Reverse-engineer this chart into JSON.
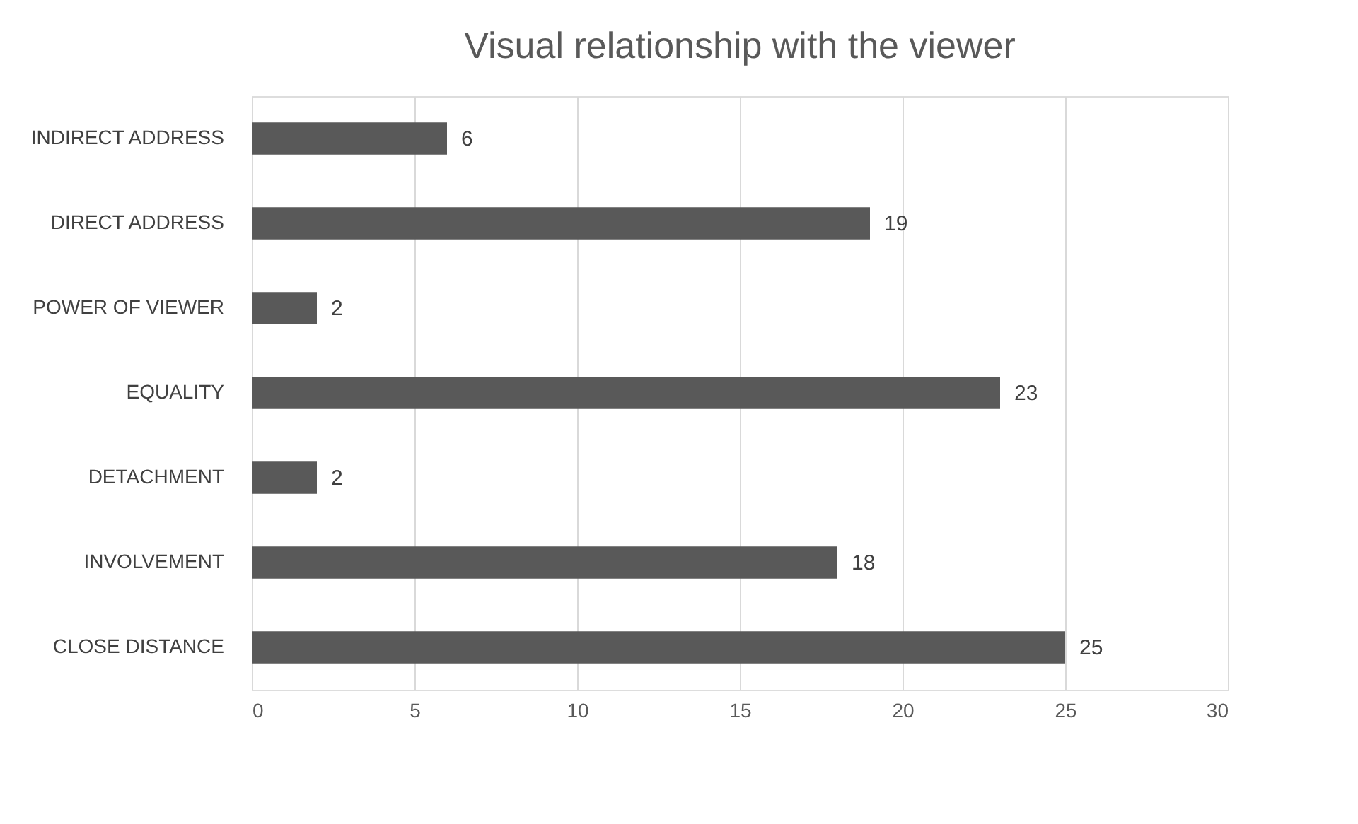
{
  "chart_data": {
    "type": "bar",
    "orientation": "horizontal",
    "title": "Visual relationship with the viewer",
    "categories": [
      "INDIRECT ADDRESS",
      "DIRECT ADDRESS",
      "POWER OF VIEWER",
      "EQUALITY",
      "DETACHMENT",
      "INVOLVEMENT",
      "CLOSE DISTANCE"
    ],
    "values": [
      6,
      19,
      2,
      23,
      2,
      18,
      25
    ],
    "color": "#595959",
    "xlim": [
      0,
      30
    ],
    "xticks": [
      0,
      5,
      10,
      15,
      20,
      25,
      30
    ],
    "grid": "x",
    "data_labels": true
  }
}
